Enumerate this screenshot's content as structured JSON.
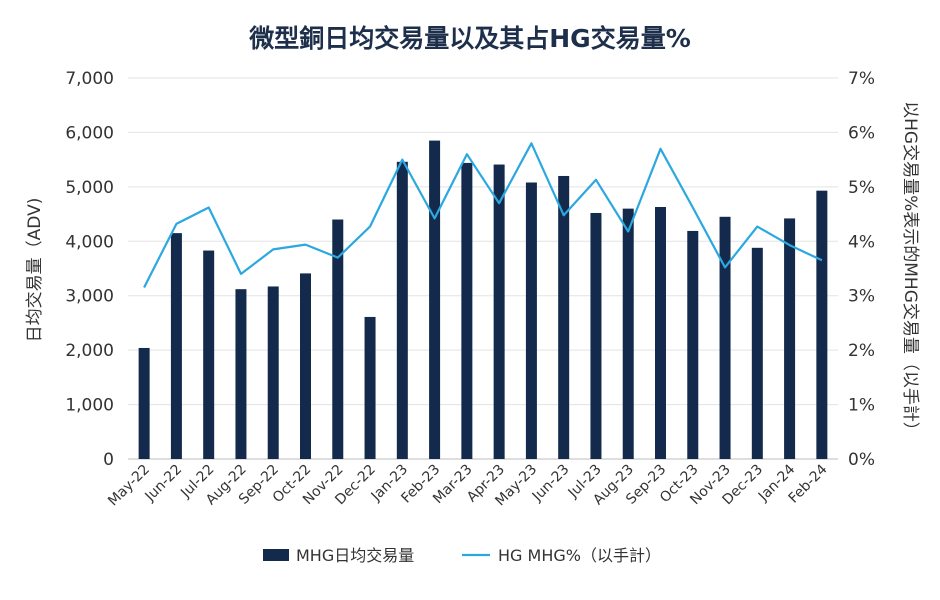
{
  "chart_data": {
    "type": "bar",
    "title": "微型銅日均交易量以及其占HG交易量%",
    "categories": [
      "May-22",
      "Jun-22",
      "Jul-22",
      "Aug-22",
      "Sep-22",
      "Oct-22",
      "Nov-22",
      "Dec-22",
      "Jan-23",
      "Feb-23",
      "Mar-23",
      "Apr-23",
      "May-23",
      "Jun-23",
      "Jul-23",
      "Aug-23",
      "Sep-23",
      "Oct-23",
      "Nov-23",
      "Dec-23",
      "Jan-24",
      "Feb-24"
    ],
    "ylabel": "日均交易量（ADV)",
    "y2label": "以HG交易量%表示的MHG交易量（以手計）",
    "ylim": [
      0,
      7000
    ],
    "y2lim": [
      0,
      7
    ],
    "yticks": [
      "0",
      "1,000",
      "2,000",
      "3,000",
      "4,000",
      "5,000",
      "6,000",
      "7,000"
    ],
    "y2ticks": [
      "0%",
      "1%",
      "2%",
      "3%",
      "4%",
      "5%",
      "6%",
      "7%"
    ],
    "grid": true,
    "legend_position": "bottom",
    "series": [
      {
        "name": "MHG日均交易量",
        "kind": "bar",
        "color": "#132a4d",
        "values": [
          2040,
          4150,
          3830,
          3120,
          3170,
          3410,
          4400,
          2610,
          5460,
          5850,
          5440,
          5410,
          5080,
          5200,
          4520,
          4600,
          4630,
          4190,
          4450,
          3880,
          4420,
          4930
        ]
      },
      {
        "name": "HG MHG%（以手計）",
        "kind": "line",
        "axis": "right",
        "color": "#2ba8e0",
        "values": [
          3.15,
          4.32,
          4.62,
          3.4,
          3.85,
          3.94,
          3.7,
          4.27,
          5.5,
          4.42,
          5.6,
          4.7,
          5.8,
          4.48,
          5.13,
          4.18,
          5.7,
          4.62,
          3.52,
          4.27,
          3.93,
          3.65
        ]
      }
    ]
  }
}
